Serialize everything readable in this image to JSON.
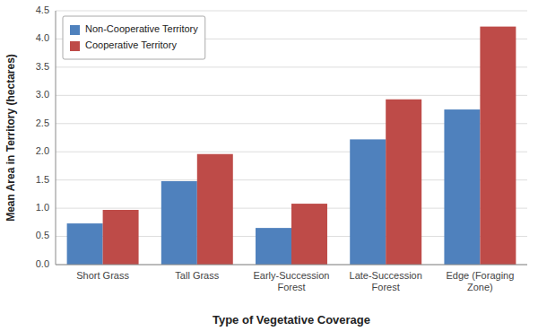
{
  "chart_data": {
    "type": "bar",
    "categories": [
      "Short Grass",
      "Tall Grass",
      "Early-Succession\nForest",
      "Late-Succession\nForest",
      "Edge (Foraging\nZone)"
    ],
    "series": [
      {
        "name": "Non-Cooperative Territory",
        "color": "#4F81BD",
        "values": [
          0.73,
          1.48,
          0.65,
          2.22,
          2.75
        ]
      },
      {
        "name": "Cooperative Territory",
        "color": "#BE4B48",
        "values": [
          0.97,
          1.96,
          1.08,
          2.93,
          4.22
        ]
      }
    ],
    "xlabel": "Type of Vegetative Coverage",
    "ylabel": "Mean Area in Territory (hectares)",
    "ylim": [
      0,
      4.5
    ],
    "yticks": [
      {
        "value": 0,
        "label": "0.0"
      },
      0.5,
      {
        "value": 1,
        "label": "1.0"
      },
      1.5,
      {
        "value": 2,
        "label": "2.0"
      },
      2.5,
      {
        "value": 3,
        "label": "3.0"
      },
      3.5,
      {
        "value": 4,
        "label": "4.0"
      },
      4.5
    ],
    "grid": true,
    "legend": "upper left"
  }
}
